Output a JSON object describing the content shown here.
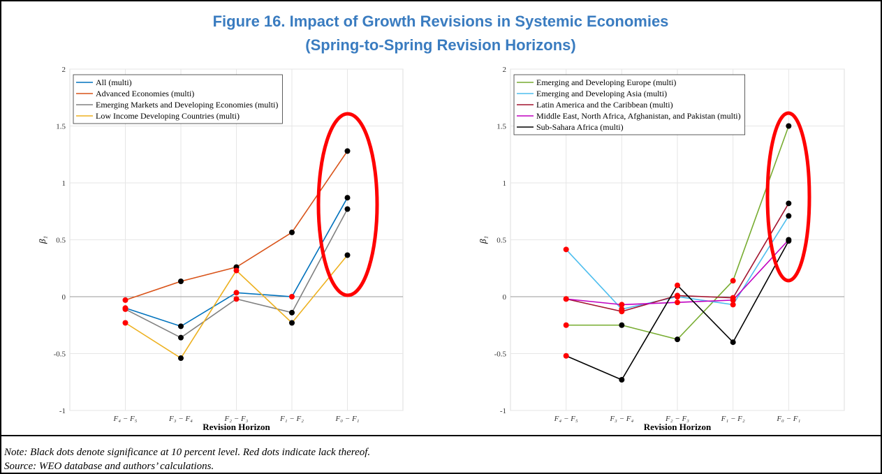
{
  "title": "Figure 16. Impact of Growth Revisions in Systemic Economies",
  "subtitle": "(Spring-to-Spring Revision Horizons)",
  "note": "Note: Black dots denote significance at 10 percent level. Red dots indicate lack thereof.",
  "source": "Source: WEO database and authors’ calculations.",
  "chart_data": [
    {
      "type": "line",
      "xlabel": "Revision Horizon",
      "ylabel": "β₁",
      "categories": [
        "F₄ − F₅",
        "F₃ − F₄",
        "F₂ − F₃",
        "F₁ − F₂",
        "F₀ − F₁"
      ],
      "ylim": [
        -1,
        2
      ],
      "yticks": [
        -1,
        -0.5,
        0,
        0.5,
        1,
        1.5,
        2
      ],
      "grid": true,
      "legend": "upper-left",
      "series": [
        {
          "name": "All (multi)",
          "color": "#0072bd",
          "values": [
            -0.1,
            -0.26,
            0.035,
            0.0,
            0.87
          ],
          "marker_colors": [
            "#ff0000",
            "#000000",
            "#ff0000",
            "#ff0000",
            "#000000"
          ]
        },
        {
          "name": "Advanced Economies (multi)",
          "color": "#d95319",
          "values": [
            -0.03,
            0.135,
            0.26,
            0.565,
            1.28
          ],
          "marker_colors": [
            "#ff0000",
            "#000000",
            "#000000",
            "#000000",
            "#000000"
          ]
        },
        {
          "name": "Emerging Markets and Developing Economies (multi)",
          "color": "#808080",
          "values": [
            -0.11,
            -0.36,
            -0.02,
            -0.14,
            0.77
          ],
          "marker_colors": [
            "#ff0000",
            "#000000",
            "#ff0000",
            "#000000",
            "#000000"
          ]
        },
        {
          "name": "Low Income Developing Countries (multi)",
          "color": "#edb120",
          "values": [
            -0.23,
            -0.54,
            0.23,
            -0.23,
            0.365
          ],
          "marker_colors": [
            "#ff0000",
            "#000000",
            "#ff0000",
            "#000000",
            "#000000"
          ]
        }
      ]
    },
    {
      "type": "line",
      "xlabel": "Revision Horizon",
      "ylabel": "β₁",
      "categories": [
        "F₄ − F₅",
        "F₃ − F₄",
        "F₂ − F₃",
        "F₁ − F₂",
        "F₀ − F₁"
      ],
      "ylim": [
        -1,
        2
      ],
      "yticks": [
        -1,
        -0.5,
        0,
        0.5,
        1,
        1.5,
        2
      ],
      "grid": true,
      "legend": "upper-left",
      "series": [
        {
          "name": "Emerging and Developing Europe (multi)",
          "color": "#77ac30",
          "values": [
            -0.25,
            -0.25,
            -0.375,
            0.14,
            1.5
          ],
          "marker_colors": [
            "#ff0000",
            "#000000",
            "#000000",
            "#ff0000",
            "#000000"
          ]
        },
        {
          "name": "Emerging and Developing Asia (multi)",
          "color": "#4dbeee",
          "values": [
            0.415,
            -0.11,
            0.0,
            -0.07,
            0.71
          ],
          "marker_colors": [
            "#ff0000",
            "#ff0000",
            "#ff0000",
            "#ff0000",
            "#000000"
          ]
        },
        {
          "name": "Latin America and the Caribbean (multi)",
          "color": "#a2142f",
          "values": [
            -0.02,
            -0.13,
            0.01,
            -0.01,
            0.82
          ],
          "marker_colors": [
            "#ff0000",
            "#ff0000",
            "#ff0000",
            "#ff0000",
            "#000000"
          ]
        },
        {
          "name": "Middle East, North Africa, Afghanistan, and Pakistan (multi)",
          "color": "#c000c0",
          "values": [
            -0.02,
            -0.07,
            -0.05,
            -0.03,
            0.5
          ],
          "marker_colors": [
            "#ff0000",
            "#ff0000",
            "#ff0000",
            "#ff0000",
            "#000000"
          ]
        },
        {
          "name": "Sub-Sahara Africa (multi)",
          "color": "#000000",
          "values": [
            -0.52,
            -0.73,
            0.1,
            -0.4,
            0.49
          ],
          "marker_colors": [
            "#ff0000",
            "#000000",
            "#ff0000",
            "#000000",
            "#000000"
          ]
        }
      ]
    }
  ]
}
